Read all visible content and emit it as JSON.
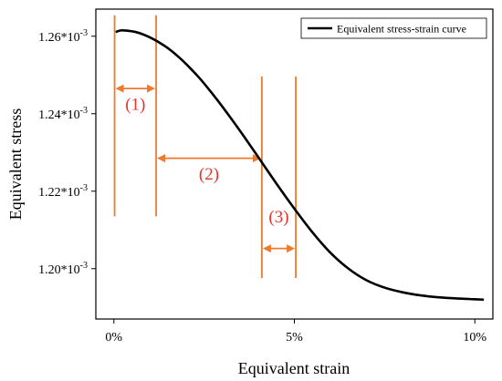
{
  "chart_data": {
    "type": "line",
    "title": "",
    "xlabel": "Equivalent strain",
    "ylabel": "Equivalent stress",
    "xlim": [
      -0.005,
      0.105
    ],
    "ylim": [
      0.001187,
      0.001267
    ],
    "x_ticks": [
      {
        "value": 0.0,
        "label": "0%"
      },
      {
        "value": 0.05,
        "label": "5%"
      },
      {
        "value": 0.1,
        "label": "10%"
      }
    ],
    "y_ticks": [
      {
        "value": 0.0012,
        "label": "1.20*10",
        "exp": "-3"
      },
      {
        "value": 0.00122,
        "label": "1.22*10",
        "exp": "-3"
      },
      {
        "value": 0.00124,
        "label": "1.24*10",
        "exp": "-3"
      },
      {
        "value": 0.00126,
        "label": "1.26*10",
        "exp": "-3"
      }
    ],
    "grid": false,
    "legend_position": "top-right",
    "series": [
      {
        "name": "Equivalent stress-strain curve",
        "color": "#000000",
        "x": [
          0.0005,
          0.002,
          0.004,
          0.006,
          0.008,
          0.01,
          0.012,
          0.015,
          0.018,
          0.021,
          0.024,
          0.027,
          0.03,
          0.035,
          0.04,
          0.045,
          0.05,
          0.055,
          0.06,
          0.065,
          0.07,
          0.075,
          0.08,
          0.085,
          0.09,
          0.095,
          0.1,
          0.1025
        ],
        "y": [
          0.0012611,
          0.0012615,
          0.0012614,
          0.0012611,
          0.0012605,
          0.0012597,
          0.0012587,
          0.0012569,
          0.0012546,
          0.0012519,
          0.0012489,
          0.0012455,
          0.0012419,
          0.0012355,
          0.0012288,
          0.001222,
          0.0012155,
          0.0012094,
          0.0012041,
          0.0012,
          0.001197,
          0.0011951,
          0.0011939,
          0.0011931,
          0.0011926,
          0.0011923,
          0.0011921,
          0.001192
        ]
      }
    ],
    "annotations": {
      "color": "#ef7a2e",
      "label_color": "#e8332a",
      "vertical_lines": [
        {
          "x": 0.0002,
          "y1": 0.0012135,
          "y2": 0.0012654
        },
        {
          "x": 0.0117,
          "y1": 0.0012135,
          "y2": 0.0012654
        },
        {
          "x": 0.041,
          "y1": 0.0011976,
          "y2": 0.0012496
        },
        {
          "x": 0.0504,
          "y1": 0.0011976,
          "y2": 0.0012496
        }
      ],
      "regions": [
        {
          "label": "(1)",
          "x_start": 0.0002,
          "x_end": 0.0117,
          "arrow_y": 0.0012465,
          "label_y": 0.001241
        },
        {
          "label": "(2)",
          "x_start": 0.0117,
          "x_end": 0.041,
          "arrow_y": 0.0012285,
          "label_y": 0.001223
        },
        {
          "label": "(3)",
          "x_start": 0.041,
          "x_end": 0.0504,
          "arrow_y": 0.0012052,
          "label_y": 0.001212
        }
      ]
    }
  }
}
